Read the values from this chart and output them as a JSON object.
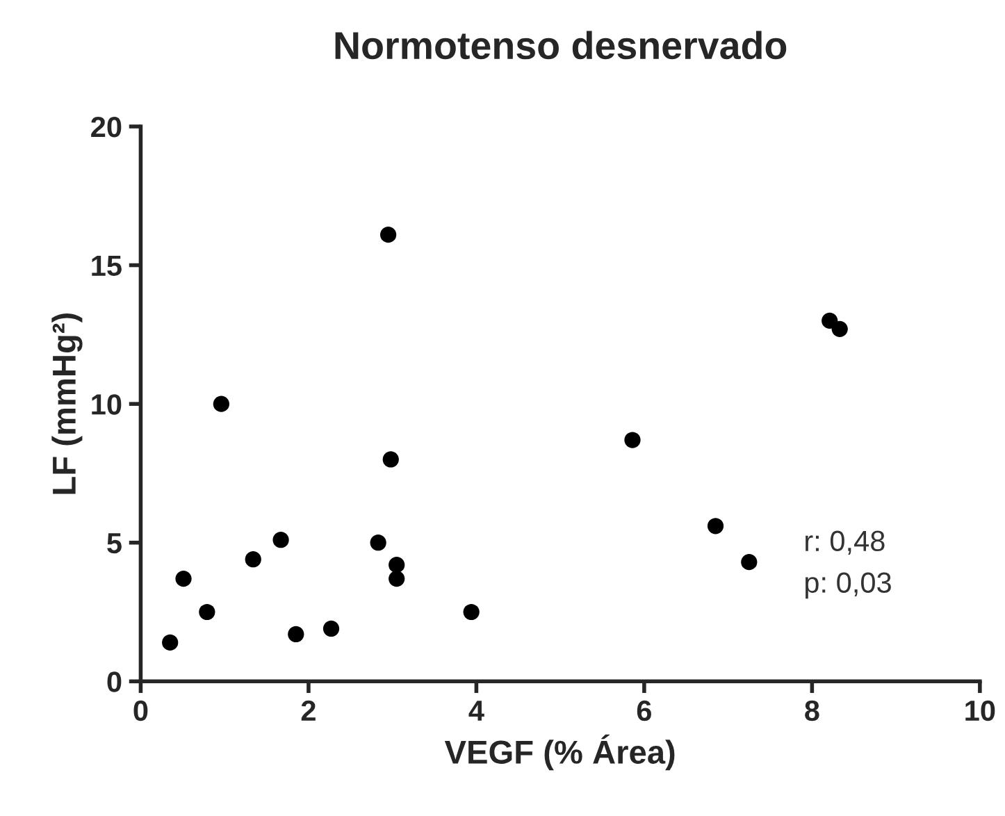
{
  "chart_data": {
    "type": "scatter",
    "title": "Normotenso desnervado",
    "xlabel": "VEGF (% Área)",
    "ylabel": "LF (mmHg²)",
    "x": [
      0.35,
      0.51,
      0.79,
      0.96,
      1.34,
      1.67,
      1.85,
      2.27,
      2.83,
      2.95,
      2.98,
      3.05,
      3.05,
      3.94,
      5.86,
      6.85,
      7.25,
      8.21,
      8.33
    ],
    "series": [
      {
        "color": "#000000",
        "values": [
          1.4,
          3.7,
          2.5,
          10.0,
          4.4,
          5.1,
          1.7,
          1.9,
          5.0,
          16.1,
          8.0,
          4.2,
          3.7,
          2.5,
          8.7,
          5.6,
          4.3,
          13.0,
          12.7
        ]
      }
    ],
    "xlim": [
      0,
      10
    ],
    "xticks": [
      0,
      2,
      4,
      6,
      8,
      10
    ],
    "ylim": [
      0,
      20
    ],
    "yticks": [
      0,
      5,
      10,
      15,
      20
    ],
    "marker": "circle",
    "grid": false,
    "legend": false,
    "annotations": [
      "r: 0,48",
      "p: 0,03"
    ]
  }
}
